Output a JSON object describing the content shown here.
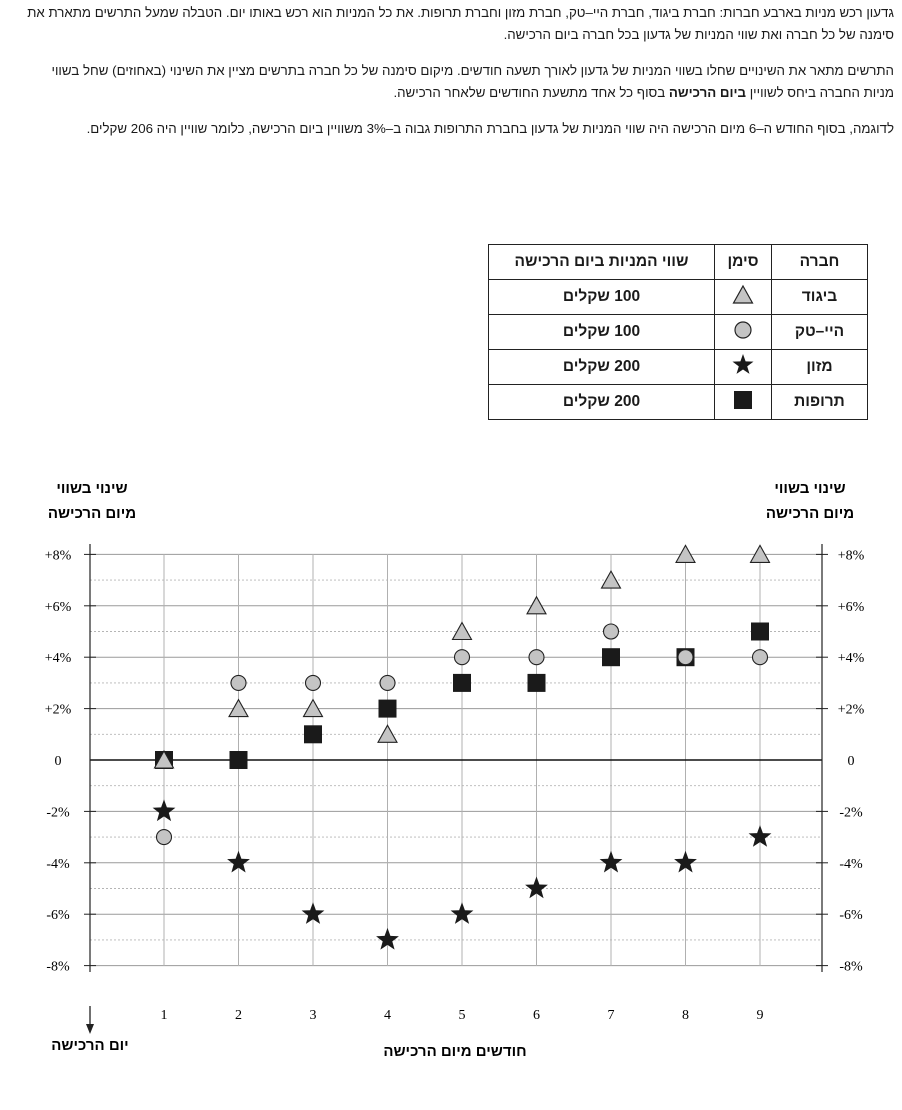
{
  "intro": {
    "p1": "גדעון רכש מניות בארבע חברות: חברת ביגוד, חברת היי–טק, חברת מזון וחברת תרופות.  את כל המניות הוא רכש באותו יום. הטבלה שמעל התרשים מתארת את סימנה של כל חברה ואת שווי המניות של גדעון בכל חברה ביום הרכישה.",
    "p2_before": "התרשים מתאר את השינויים שחלו בשווי המניות של גדעון לאורך תשעה חודשים.  מיקום סימנה של כל חברה בתרשים מציין את השינוי (באחוזים) שחל בשווי מניות החברה ביחס לשוויין ",
    "p2_bold": "ביום הרכישה",
    "p2_after": " בסוף כל אחד מתשעת החודשים שלאחר הרכישה.",
    "p3": "לדוגמה, בסוף החודש ה–6 מיום הרכישה היה שווי המניות של גדעון בחברת התרופות גבוה ב–3% משוויין ביום הרכישה, כלומר שוויין היה 206 שקלים."
  },
  "legend_table": {
    "headers": {
      "company": "חברה",
      "symbol": "סימן",
      "value": "שווי המניות ביום הרכישה"
    },
    "rows": [
      {
        "company": "ביגוד",
        "symbol": "triangle-icon",
        "value": "100 שקלים"
      },
      {
        "company": "היי–טק",
        "symbol": "circle-icon",
        "value": "100 שקלים"
      },
      {
        "company": "מזון",
        "symbol": "star-icon",
        "value": "200 שקלים"
      },
      {
        "company": "תרופות",
        "symbol": "square-icon",
        "value": "200 שקלים"
      }
    ]
  },
  "chart_data": {
    "type": "scatter",
    "x": [
      1,
      2,
      3,
      4,
      5,
      6,
      7,
      8,
      9
    ],
    "xlabel": "חודשים מיום הרכישה",
    "ylabel_left": [
      "שינוי בשווי",
      "מיום הרכישה"
    ],
    "ylabel_right": [
      "שינוי בשווי",
      "מיום הרכישה"
    ],
    "origin_label": "יום הרכישה",
    "ylim": [
      -8,
      8
    ],
    "yticks": [
      "+8%",
      "+6%",
      "+4%",
      "+2%",
      "0",
      "-2%",
      "-4%",
      "-6%",
      "-8%"
    ],
    "ytick_values": [
      8,
      6,
      4,
      2,
      0,
      -2,
      -4,
      -6,
      -8
    ],
    "grid": true,
    "series": [
      {
        "name": "ביגוד",
        "marker": "triangle",
        "color": "#c4c4c4",
        "values": [
          0,
          2,
          2,
          1,
          5,
          6,
          7,
          8,
          8
        ]
      },
      {
        "name": "היי–טק",
        "marker": "circle",
        "color": "#c4c4c4",
        "values": [
          -3,
          3,
          3,
          3,
          4,
          4,
          5,
          4,
          4
        ]
      },
      {
        "name": "מזון",
        "marker": "star",
        "color": "#1a1a1a",
        "values": [
          -2,
          -4,
          -6,
          -7,
          -6,
          -5,
          -4,
          -4,
          -3
        ]
      },
      {
        "name": "תרופות",
        "marker": "square",
        "color": "#1a1a1a",
        "values": [
          0,
          0,
          1,
          2,
          3,
          3,
          4,
          4,
          5
        ]
      }
    ]
  }
}
